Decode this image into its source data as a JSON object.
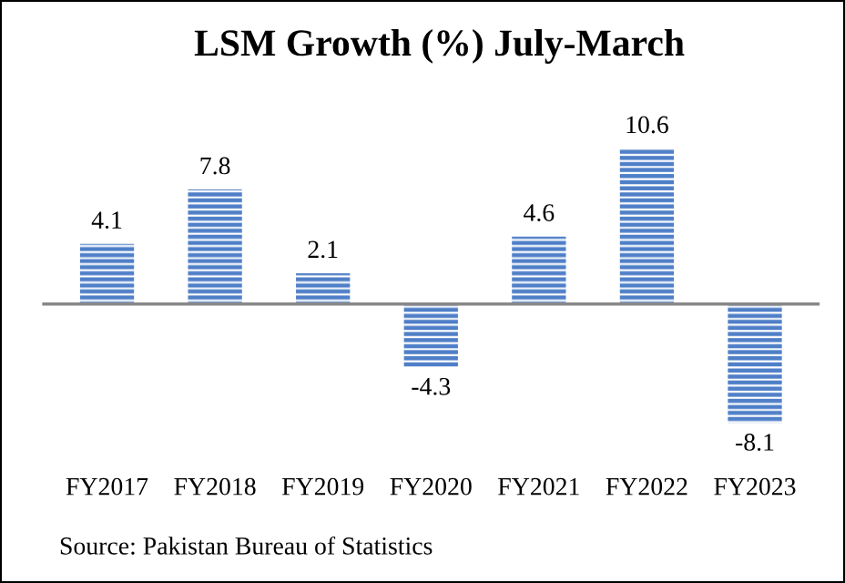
{
  "chart_data": {
    "type": "bar",
    "title": "LSM Growth (%) July-March",
    "categories": [
      "FY2017",
      "FY2018",
      "FY2019",
      "FY2020",
      "FY2021",
      "FY2022",
      "FY2023"
    ],
    "values": [
      4.1,
      7.8,
      2.1,
      -4.3,
      4.6,
      10.6,
      -8.1
    ],
    "color": "#4f7fc8",
    "data_labels": true,
    "grid": false,
    "annotations": [
      "Source: Pakistan Bureau of Statistics"
    ]
  }
}
